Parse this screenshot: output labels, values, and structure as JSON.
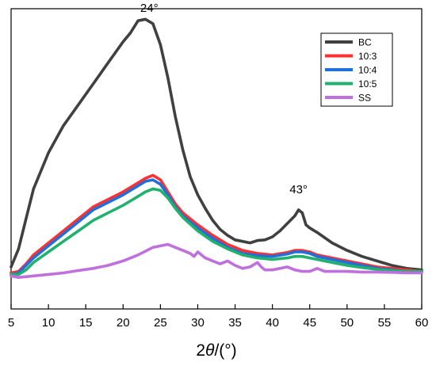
{
  "chart_data": {
    "type": "line",
    "xlabel_prefix": "2",
    "xlabel_theta": "θ",
    "xlabel_suffix": "/(°)",
    "xlim": [
      5,
      60
    ],
    "xticks": [
      5,
      10,
      15,
      20,
      25,
      30,
      35,
      40,
      45,
      50,
      55,
      60
    ],
    "ylim": [
      0,
      100
    ],
    "legend_position": "top-right",
    "annotations": [
      {
        "text": "24°",
        "x": 23.5,
        "y": 99
      },
      {
        "text": "43°",
        "x": 43.5,
        "y": 38.5
      }
    ],
    "series": [
      {
        "name": "BC",
        "color": "#404040",
        "points": [
          [
            5,
            14
          ],
          [
            6,
            20
          ],
          [
            7,
            30
          ],
          [
            8,
            40
          ],
          [
            10,
            52
          ],
          [
            12,
            61
          ],
          [
            14,
            68
          ],
          [
            16,
            75
          ],
          [
            18,
            82
          ],
          [
            20,
            89
          ],
          [
            21,
            92
          ],
          [
            22,
            96
          ],
          [
            23,
            96.5
          ],
          [
            24,
            95
          ],
          [
            25,
            88
          ],
          [
            26,
            77
          ],
          [
            27,
            64
          ],
          [
            28,
            53
          ],
          [
            29,
            44
          ],
          [
            30,
            38
          ],
          [
            31,
            33.5
          ],
          [
            32,
            29.5
          ],
          [
            33,
            26.5
          ],
          [
            34,
            24.5
          ],
          [
            35,
            23
          ],
          [
            36,
            22.5
          ],
          [
            37,
            22
          ],
          [
            38,
            22.8
          ],
          [
            39,
            23
          ],
          [
            40,
            24
          ],
          [
            41,
            26
          ],
          [
            42,
            28.5
          ],
          [
            43,
            31
          ],
          [
            43.5,
            33
          ],
          [
            44,
            32
          ],
          [
            44.5,
            28
          ],
          [
            45,
            27
          ],
          [
            46,
            25.5
          ],
          [
            48,
            22
          ],
          [
            50,
            19.5
          ],
          [
            52,
            17.5
          ],
          [
            54,
            16
          ],
          [
            56,
            14.5
          ],
          [
            58,
            13.5
          ],
          [
            60,
            13
          ]
        ]
      },
      {
        "name": "10:3",
        "color": "#ff3030",
        "points": [
          [
            5,
            12
          ],
          [
            6,
            12.5
          ],
          [
            7,
            15
          ],
          [
            8,
            18
          ],
          [
            10,
            22
          ],
          [
            12,
            26
          ],
          [
            14,
            30
          ],
          [
            16,
            34
          ],
          [
            18,
            36.5
          ],
          [
            20,
            39
          ],
          [
            22,
            42
          ],
          [
            23,
            43.5
          ],
          [
            24,
            44.5
          ],
          [
            25,
            43
          ],
          [
            26,
            39
          ],
          [
            27,
            35
          ],
          [
            28,
            32
          ],
          [
            30,
            28
          ],
          [
            32,
            24.5
          ],
          [
            34,
            21.5
          ],
          [
            36,
            19.5
          ],
          [
            38,
            18.5
          ],
          [
            40,
            18
          ],
          [
            42,
            18.8
          ],
          [
            43,
            19.5
          ],
          [
            44,
            19.5
          ],
          [
            45,
            19
          ],
          [
            46,
            18
          ],
          [
            48,
            17
          ],
          [
            50,
            16
          ],
          [
            52,
            15
          ],
          [
            54,
            14
          ],
          [
            56,
            13.5
          ],
          [
            58,
            13
          ],
          [
            60,
            12.5
          ]
        ]
      },
      {
        "name": "10:4",
        "color": "#1f6fdc",
        "points": [
          [
            5,
            11.5
          ],
          [
            6,
            12
          ],
          [
            7,
            14.5
          ],
          [
            8,
            17
          ],
          [
            10,
            21
          ],
          [
            12,
            25
          ],
          [
            14,
            29
          ],
          [
            16,
            33
          ],
          [
            18,
            35.5
          ],
          [
            20,
            38
          ],
          [
            22,
            41
          ],
          [
            23,
            42.5
          ],
          [
            24,
            43
          ],
          [
            25,
            41.5
          ],
          [
            26,
            38
          ],
          [
            27,
            34
          ],
          [
            28,
            31
          ],
          [
            30,
            27
          ],
          [
            32,
            23.5
          ],
          [
            34,
            20.5
          ],
          [
            36,
            18.5
          ],
          [
            38,
            17.8
          ],
          [
            40,
            17.5
          ],
          [
            42,
            18.3
          ],
          [
            43,
            19
          ],
          [
            44,
            19
          ],
          [
            45,
            18.5
          ],
          [
            46,
            17.5
          ],
          [
            48,
            16.5
          ],
          [
            50,
            15.5
          ],
          [
            52,
            14.5
          ],
          [
            54,
            13.5
          ],
          [
            56,
            13
          ],
          [
            58,
            12.5
          ],
          [
            60,
            12.5
          ]
        ]
      },
      {
        "name": "10:5",
        "color": "#22b06e",
        "points": [
          [
            5,
            11.5
          ],
          [
            6,
            11.5
          ],
          [
            7,
            13
          ],
          [
            8,
            15.5
          ],
          [
            10,
            19
          ],
          [
            12,
            22.5
          ],
          [
            14,
            26
          ],
          [
            16,
            29.5
          ],
          [
            18,
            32
          ],
          [
            20,
            34.5
          ],
          [
            22,
            37.5
          ],
          [
            23,
            39
          ],
          [
            24,
            40
          ],
          [
            25,
            39.5
          ],
          [
            26,
            37
          ],
          [
            27,
            33.5
          ],
          [
            28,
            30.5
          ],
          [
            30,
            26
          ],
          [
            32,
            22.5
          ],
          [
            34,
            20
          ],
          [
            36,
            18
          ],
          [
            38,
            17
          ],
          [
            40,
            16.5
          ],
          [
            42,
            17
          ],
          [
            43,
            17.5
          ],
          [
            44,
            17.5
          ],
          [
            45,
            17
          ],
          [
            46,
            16.5
          ],
          [
            48,
            15.5
          ],
          [
            50,
            14.5
          ],
          [
            52,
            13.8
          ],
          [
            54,
            13.2
          ],
          [
            56,
            12.8
          ],
          [
            58,
            12.5
          ],
          [
            60,
            12.5
          ]
        ]
      },
      {
        "name": "SS",
        "color": "#c070dc",
        "points": [
          [
            5,
            11
          ],
          [
            6,
            10.5
          ],
          [
            8,
            11
          ],
          [
            10,
            11.5
          ],
          [
            12,
            12
          ],
          [
            14,
            12.8
          ],
          [
            16,
            13.5
          ],
          [
            18,
            14.5
          ],
          [
            20,
            16
          ],
          [
            22,
            18
          ],
          [
            24,
            20.5
          ],
          [
            25,
            21
          ],
          [
            26,
            21.5
          ],
          [
            27,
            20.5
          ],
          [
            28,
            19.5
          ],
          [
            29,
            18.5
          ],
          [
            29.5,
            17.5
          ],
          [
            30,
            19
          ],
          [
            31,
            17
          ],
          [
            32,
            16
          ],
          [
            33,
            15
          ],
          [
            34,
            16
          ],
          [
            35,
            14.5
          ],
          [
            36,
            13.5
          ],
          [
            37,
            14
          ],
          [
            38,
            15.5
          ],
          [
            38.5,
            14
          ],
          [
            39,
            13
          ],
          [
            40,
            13
          ],
          [
            41,
            13.5
          ],
          [
            42,
            14
          ],
          [
            43,
            13
          ],
          [
            44,
            12.5
          ],
          [
            45,
            12.5
          ],
          [
            46,
            13.5
          ],
          [
            47,
            12.5
          ],
          [
            48,
            12.5
          ],
          [
            50,
            12.5
          ],
          [
            52,
            12.3
          ],
          [
            54,
            12.3
          ],
          [
            56,
            12.2
          ],
          [
            58,
            12
          ],
          [
            60,
            12
          ]
        ]
      }
    ]
  }
}
